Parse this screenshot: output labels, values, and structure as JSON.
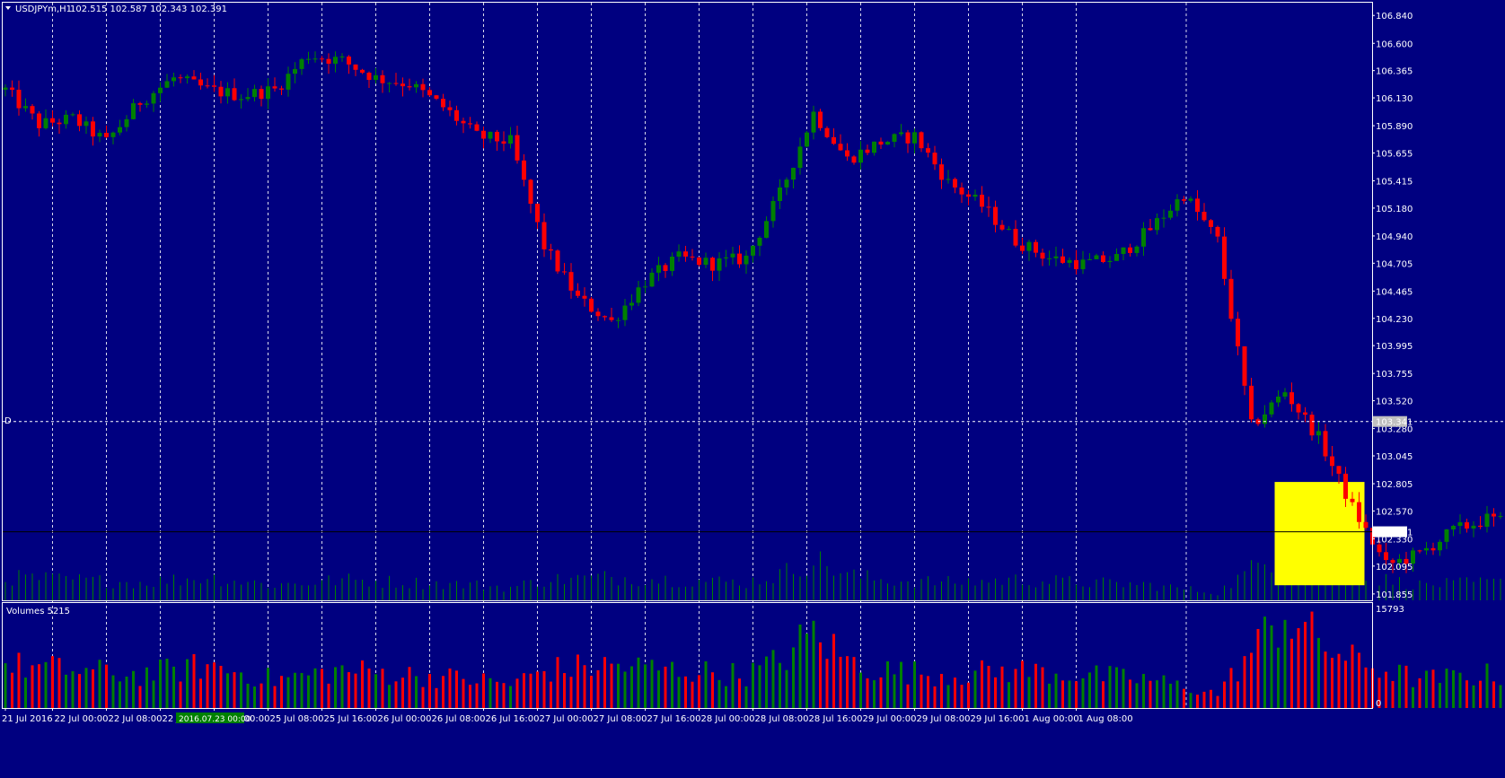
{
  "header": {
    "menu_icon": "triangle-down-icon",
    "symbol_text": "USDJPYm,H1",
    "ohlc_text": "102.515 102.587 102.343 102.391"
  },
  "indicator": {
    "label": "Volumes 5215"
  },
  "horizontal_line": {
    "label": "D",
    "price": 103.341,
    "price_tag": "103.341"
  },
  "bid_line": {
    "price": 102.391,
    "price_tag": "102.391"
  },
  "crosshair_time_badge": "2016.07.23 00:00",
  "colors": {
    "background": "#000080",
    "bull": "#008000",
    "bear": "#ff0000",
    "grid": "#ffffff",
    "highlight": "#ffff00",
    "label": "#ffffff"
  },
  "chart_data": {
    "type": "candlestick",
    "symbol": "USDJPYm",
    "timeframe": "H1",
    "price_ticks": [
      "106.840",
      "106.600",
      "106.365",
      "106.130",
      "105.890",
      "105.655",
      "105.415",
      "105.180",
      "104.940",
      "104.705",
      "104.465",
      "104.230",
      "103.995",
      "103.755",
      "103.520",
      "103.280",
      "103.045",
      "102.805",
      "102.570",
      "102.330",
      "102.095",
      "101.855"
    ],
    "price_range": [
      101.8,
      106.95
    ],
    "time_ticks": [
      "21 Jul 2016",
      "22 Jul 00:00",
      "22 Jul 08:00",
      "22 Jul 16:00",
      "25 Jul 00:00",
      "25 Jul 08:00",
      "25 Jul 16:00",
      "26 Jul 00:00",
      "26 Jul 08:00",
      "26 Jul 16:00",
      "27 Jul 00:00",
      "27 Jul 08:00",
      "27 Jul 16:00",
      "28 Jul 00:00",
      "28 Jul 08:00",
      "28 Jul 16:00",
      "29 Jul 00:00",
      "29 Jul 08:00",
      "29 Jul 16:00",
      "1 Aug 00:00",
      "1 Aug 08:00"
    ],
    "volume_ticks": [
      "15793",
      "0"
    ],
    "volume_max": 15793,
    "highlight_range": {
      "price_low": 101.93,
      "price_high": 102.82,
      "start_index": 189,
      "end_index": 201
    },
    "path_anchors": [
      [
        0,
        106.2
      ],
      [
        5,
        105.9
      ],
      [
        10,
        105.95
      ],
      [
        15,
        105.75
      ],
      [
        20,
        106.1
      ],
      [
        25,
        106.3
      ],
      [
        30,
        106.2
      ],
      [
        35,
        106.15
      ],
      [
        40,
        106.2
      ],
      [
        45,
        106.5
      ],
      [
        50,
        106.45
      ],
      [
        55,
        106.3
      ],
      [
        60,
        106.25
      ],
      [
        65,
        106.05
      ],
      [
        70,
        105.8
      ],
      [
        75,
        105.75
      ],
      [
        80,
        104.85
      ],
      [
        85,
        104.4
      ],
      [
        90,
        104.2
      ],
      [
        95,
        104.55
      ],
      [
        100,
        104.75
      ],
      [
        105,
        104.7
      ],
      [
        110,
        104.75
      ],
      [
        115,
        105.3
      ],
      [
        120,
        106.0
      ],
      [
        125,
        105.6
      ],
      [
        130,
        105.75
      ],
      [
        135,
        105.8
      ],
      [
        140,
        105.4
      ],
      [
        145,
        105.2
      ],
      [
        150,
        104.9
      ],
      [
        155,
        104.75
      ],
      [
        160,
        104.7
      ],
      [
        165,
        104.75
      ],
      [
        170,
        105.0
      ],
      [
        175,
        105.3
      ],
      [
        180,
        104.9
      ],
      [
        185,
        103.3
      ],
      [
        190,
        103.6
      ],
      [
        195,
        103.2
      ],
      [
        200,
        102.6
      ],
      [
        205,
        102.1
      ],
      [
        210,
        102.2
      ],
      [
        215,
        102.4
      ],
      [
        220,
        102.5
      ],
      [
        225,
        102.45
      ],
      [
        227,
        102.39
      ]
    ],
    "volume_anchors": [
      [
        0,
        0.45
      ],
      [
        10,
        0.4
      ],
      [
        20,
        0.35
      ],
      [
        30,
        0.45
      ],
      [
        40,
        0.3
      ],
      [
        50,
        0.4
      ],
      [
        60,
        0.35
      ],
      [
        70,
        0.3
      ],
      [
        75,
        0.25
      ],
      [
        80,
        0.4
      ],
      [
        90,
        0.45
      ],
      [
        100,
        0.4
      ],
      [
        110,
        0.35
      ],
      [
        115,
        0.5
      ],
      [
        120,
        0.8
      ],
      [
        125,
        0.5
      ],
      [
        130,
        0.4
      ],
      [
        140,
        0.35
      ],
      [
        150,
        0.4
      ],
      [
        160,
        0.35
      ],
      [
        170,
        0.3
      ],
      [
        180,
        0.15
      ],
      [
        185,
        0.6
      ],
      [
        190,
        1.0
      ],
      [
        195,
        0.7
      ],
      [
        200,
        0.5
      ],
      [
        210,
        0.3
      ],
      [
        220,
        0.35
      ],
      [
        227,
        0.35
      ]
    ]
  }
}
